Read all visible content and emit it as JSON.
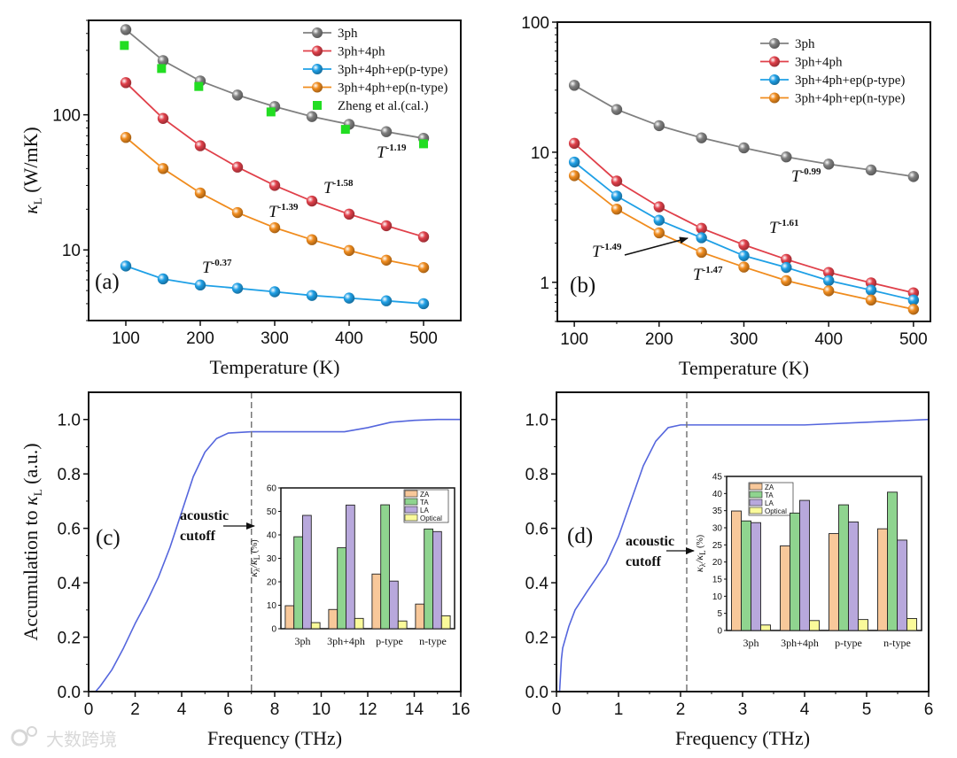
{
  "watermark": "大数跨境",
  "chart_data": [
    {
      "type": "line",
      "panel_label": "(a)",
      "xlabel": "Temperature (K)",
      "ylabel": {
        "sym": "κ",
        "sub": "L",
        "rest": " (W/mK)"
      },
      "yscale": "log",
      "xlim": [
        50,
        550
      ],
      "ylim": [
        3,
        500
      ],
      "xticks": [
        "100",
        "200",
        "300",
        "400",
        "500"
      ],
      "yticks": [
        "10",
        "100"
      ],
      "legend_position": "top-right",
      "x": [
        100,
        150,
        200,
        250,
        300,
        350,
        400,
        450,
        500
      ],
      "series": [
        {
          "name": "3ph",
          "color": "#808080",
          "values": [
            427,
            252,
            178,
            140,
            115,
            97,
            85,
            75,
            67
          ]
        },
        {
          "name": "3ph+4ph",
          "color": "#e0404a",
          "values": [
            173,
            94,
            59,
            41,
            30,
            23,
            18.4,
            15.1,
            12.5
          ]
        },
        {
          "name": "3ph+4ph+ep(p-type)",
          "color": "#1fa0e6",
          "values": [
            7.6,
            6.1,
            5.5,
            5.2,
            4.9,
            4.6,
            4.4,
            4.2,
            4.0
          ]
        },
        {
          "name": "3ph+4ph+ep(n-type)",
          "color": "#f08c1e",
          "values": [
            68,
            40,
            26.4,
            18.9,
            14.6,
            11.9,
            9.9,
            8.4,
            7.4
          ]
        }
      ],
      "scatter": {
        "name": "Zheng et al.(cal.)",
        "color": "#22dd22",
        "x": [
          98,
          148,
          198,
          295,
          395,
          500
        ],
        "values": [
          326,
          220,
          162,
          105,
          78,
          61
        ]
      },
      "annotations": [
        {
          "base": "T",
          "exp": "-1.19"
        },
        {
          "base": "T",
          "exp": "-1.58"
        },
        {
          "base": "T",
          "exp": "-1.39"
        },
        {
          "base": "T",
          "exp": "-0.37"
        }
      ]
    },
    {
      "type": "line",
      "panel_label": "(b)",
      "xlabel": "Temperature (K)",
      "yscale": "log",
      "xlim": [
        80,
        520
      ],
      "ylim": [
        0.5,
        100
      ],
      "xticks": [
        "100",
        "200",
        "300",
        "400",
        "500"
      ],
      "yticks": [
        "1",
        "10",
        "100"
      ],
      "legend_position": "top-right",
      "x": [
        100,
        150,
        200,
        250,
        300,
        350,
        400,
        450,
        500
      ],
      "series": [
        {
          "name": "3ph",
          "color": "#808080",
          "values": [
            32.7,
            21.3,
            16,
            12.9,
            10.8,
            9.2,
            8.1,
            7.3,
            6.5
          ]
        },
        {
          "name": "3ph+4ph",
          "color": "#e0404a",
          "values": [
            11.7,
            6.0,
            3.8,
            2.6,
            1.94,
            1.5,
            1.19,
            0.99,
            0.83
          ]
        },
        {
          "name": "3ph+4ph+ep(p-type)",
          "color": "#1fa0e6",
          "values": [
            8.4,
            4.6,
            3.0,
            2.2,
            1.6,
            1.3,
            1.03,
            0.87,
            0.73
          ]
        },
        {
          "name": "3ph+4ph+ep(n-type)",
          "color": "#f08c1e",
          "values": [
            6.6,
            3.65,
            2.4,
            1.7,
            1.31,
            1.03,
            0.86,
            0.73,
            0.62
          ]
        }
      ],
      "annotations": [
        {
          "base": "T",
          "exp": "-0.99"
        },
        {
          "base": "T",
          "exp": "-1.61"
        },
        {
          "base": "T",
          "exp": "-1.49"
        },
        {
          "base": "T",
          "exp": "-1.47"
        }
      ]
    },
    {
      "type": "line",
      "panel_label": "(c)",
      "xlabel": "Frequency (THz)",
      "ylabel": {
        "pre": "Accumulation to ",
        "sym": "κ",
        "sub": "L",
        "rest": " (a.u.)"
      },
      "yscale": "linear",
      "xlim": [
        0,
        16
      ],
      "ylim": [
        0,
        1.1
      ],
      "xticks": [
        "0",
        "2",
        "4",
        "6",
        "8",
        "10",
        "12",
        "14",
        "16"
      ],
      "yticks": [
        "0.0",
        "0.2",
        "0.4",
        "0.6",
        "0.8",
        "1.0"
      ],
      "color": "#5566dd",
      "cutoff": 7,
      "cutoff_label": [
        "acoustic",
        "cutoff"
      ],
      "x": [
        0,
        0.3,
        0.5,
        1,
        1.5,
        2,
        2.5,
        3,
        3.5,
        4,
        4.5,
        5,
        5.5,
        6,
        7,
        8,
        10,
        11,
        12,
        13,
        14,
        15,
        16
      ],
      "y": [
        0,
        0,
        0.02,
        0.08,
        0.16,
        0.25,
        0.33,
        0.42,
        0.53,
        0.66,
        0.79,
        0.88,
        0.93,
        0.95,
        0.955,
        0.955,
        0.955,
        0.955,
        0.97,
        0.99,
        0.997,
        1.0,
        1.0
      ]
    },
    {
      "type": "line",
      "panel_label": "(d)",
      "xlabel": "Frequency (THz)",
      "yscale": "linear",
      "xlim": [
        0,
        6
      ],
      "ylim": [
        0,
        1.1
      ],
      "xticks": [
        "0",
        "1",
        "2",
        "3",
        "4",
        "5",
        "6"
      ],
      "yticks": [
        "0.0",
        "0.2",
        "0.4",
        "0.6",
        "0.8",
        "1.0"
      ],
      "color": "#5566dd",
      "cutoff": 2.1,
      "cutoff_label": [
        "acoustic",
        "cutoff"
      ],
      "x": [
        0,
        0.05,
        0.08,
        0.1,
        0.2,
        0.3,
        0.5,
        0.8,
        1.0,
        1.2,
        1.4,
        1.6,
        1.8,
        2.0,
        2.1,
        3,
        4,
        5,
        6
      ],
      "y": [
        0,
        0,
        0.12,
        0.16,
        0.24,
        0.3,
        0.37,
        0.47,
        0.57,
        0.7,
        0.83,
        0.92,
        0.97,
        0.98,
        0.98,
        0.98,
        0.98,
        0.99,
        1.0
      ]
    },
    {
      "type": "bar",
      "inset_of": "(c)",
      "ylabel": {
        "sym": "κ",
        "sub": "λ",
        "mid": "/κ",
        "sub2": "L",
        "rest": " (%)"
      },
      "ylim": [
        0,
        60
      ],
      "yticks": [
        "0",
        "10",
        "20",
        "30",
        "40",
        "50",
        "60"
      ],
      "categories": [
        "3ph",
        "3ph+4ph",
        "p-type",
        "n-type"
      ],
      "series": [
        {
          "name": "ZA",
          "color": "#f8c89a",
          "values": [
            9.8,
            8.2,
            23.3,
            10.5
          ]
        },
        {
          "name": "TA",
          "color": "#8fd48f",
          "values": [
            39.2,
            34.5,
            52.8,
            42.5
          ]
        },
        {
          "name": "LA",
          "color": "#b8a8dc",
          "values": [
            48.3,
            52.7,
            20.3,
            41.4
          ]
        },
        {
          "name": "Optical",
          "color": "#fafa9a",
          "values": [
            2.6,
            4.4,
            3.3,
            5.5
          ]
        }
      ]
    },
    {
      "type": "bar",
      "inset_of": "(d)",
      "ylabel": {
        "sym": "κ",
        "sub": "λ",
        "mid": "/κ",
        "sub2": "L",
        "rest": " (%)"
      },
      "ylim": [
        0,
        45
      ],
      "yticks": [
        "0",
        "5",
        "10",
        "15",
        "20",
        "25",
        "30",
        "35",
        "40",
        "45"
      ],
      "categories": [
        "3ph",
        "3ph+4ph",
        "p-type",
        "n-type"
      ],
      "series": [
        {
          "name": "ZA",
          "color": "#f8c89a",
          "values": [
            34.9,
            24.7,
            28.3,
            29.7
          ]
        },
        {
          "name": "TA",
          "color": "#8fd48f",
          "values": [
            32.0,
            34.3,
            36.7,
            40.4
          ]
        },
        {
          "name": "LA",
          "color": "#b8a8dc",
          "values": [
            31.5,
            38.0,
            31.7,
            26.4
          ]
        },
        {
          "name": "Optical",
          "color": "#fafa9a",
          "values": [
            1.6,
            2.9,
            3.2,
            3.5
          ]
        }
      ]
    }
  ]
}
